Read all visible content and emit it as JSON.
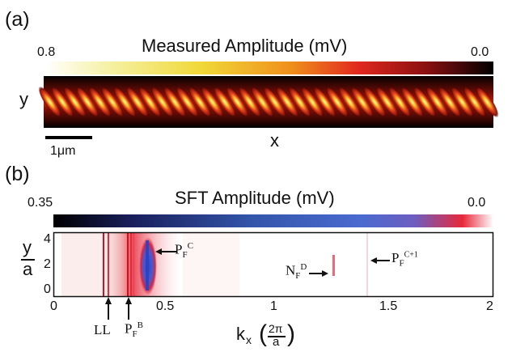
{
  "panel_a": {
    "label": "(a)",
    "colorbar": {
      "title": "Measured Amplitude (mV)",
      "max_label": "0.8",
      "min_label": "0.0",
      "colors": [
        "#ffffff",
        "#f5f0a0",
        "#f0d838",
        "#ef8f1c",
        "#e0281e",
        "#8a1010",
        "#000000"
      ]
    },
    "y_label": "y",
    "x_label": "x",
    "scale_bar_label": "1μm"
  },
  "panel_b": {
    "label": "(b)",
    "colorbar": {
      "title": "SFT Amplitude (mV)",
      "max_label": "0.35",
      "min_label": "0.0",
      "colors": [
        "#000000",
        "#1a1f5c",
        "#3355aa",
        "#4a6ad0",
        "#6d5ec0",
        "#e8283a",
        "#ffffff"
      ]
    },
    "y_axis": {
      "label_top": "y",
      "label_bottom": "a",
      "ticks": [
        "4",
        "2",
        "0"
      ]
    },
    "x_axis": {
      "ticks": [
        "0",
        "0.5",
        "1",
        "1.5",
        "2"
      ],
      "label_k": "k",
      "label_sub": "x",
      "label_num": "2π",
      "label_den": "a"
    },
    "annotations": {
      "ll": "LL",
      "pfb_main": "P",
      "pfb_sub": "F",
      "pfb_sup": "B",
      "pfc_main": "P",
      "pfc_sub": "F",
      "pfc_sup": "C",
      "nfd_main": "N",
      "nfd_sub": "F",
      "nfd_sup": "D",
      "pfc1_main": "P",
      "pfc1_sub": "F",
      "pfc1_sup": "C+1"
    }
  }
}
